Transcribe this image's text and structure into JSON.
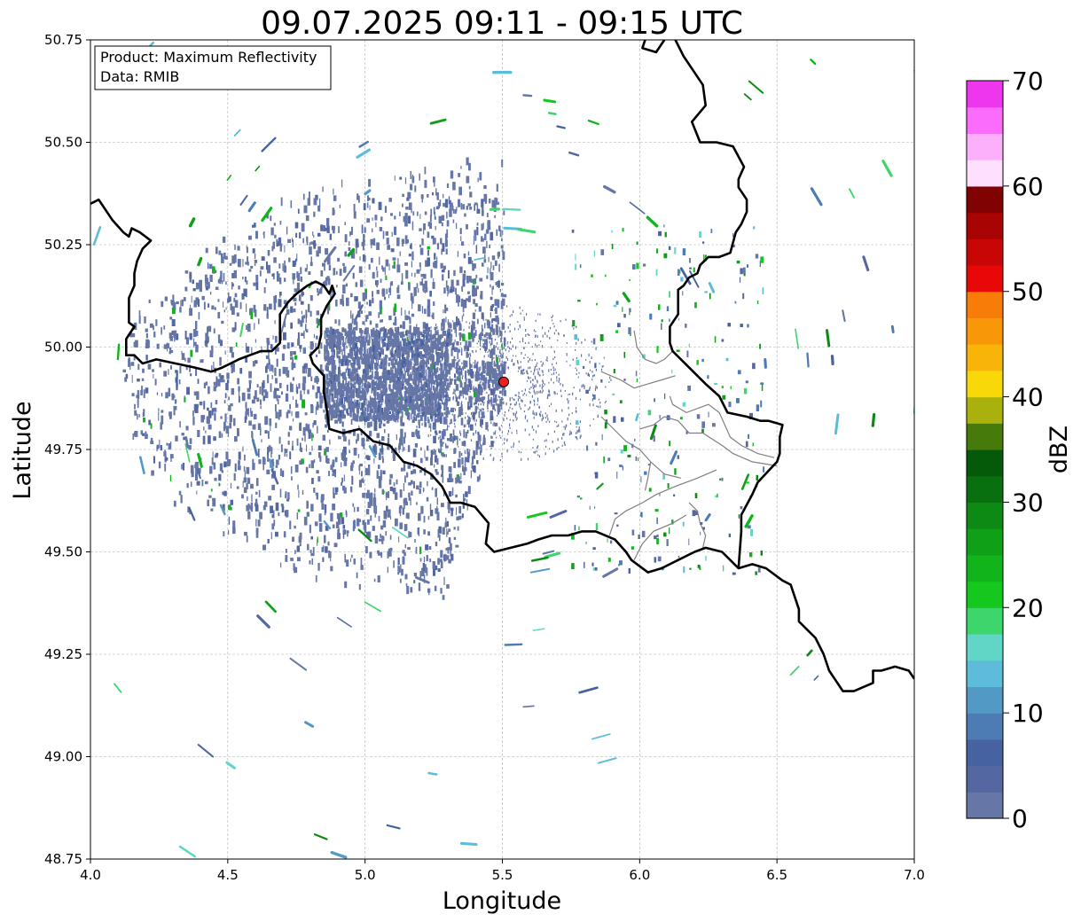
{
  "title": "09.07.2025 09:11 - 09:15 UTC",
  "info_box": {
    "line1": "Product: Maximum Reflectivity",
    "line2": "Data: RMIB"
  },
  "axes": {
    "xlabel": "Longitude",
    "ylabel": "Latitude",
    "xlim": [
      4.0,
      7.0
    ],
    "ylim": [
      48.75,
      50.75
    ],
    "xticks": [
      {
        "v": 4.0,
        "label": "4.0"
      },
      {
        "v": 4.5,
        "label": "4.5"
      },
      {
        "v": 5.0,
        "label": "5.0"
      },
      {
        "v": 5.5,
        "label": "5.5"
      },
      {
        "v": 6.0,
        "label": "6.0"
      },
      {
        "v": 6.5,
        "label": "6.5"
      },
      {
        "v": 7.0,
        "label": "7.0"
      }
    ],
    "yticks": [
      {
        "v": 48.75,
        "label": "48.75"
      },
      {
        "v": 49.0,
        "label": "49.00"
      },
      {
        "v": 49.25,
        "label": "49.25"
      },
      {
        "v": 49.5,
        "label": "49.50"
      },
      {
        "v": 49.75,
        "label": "49.75"
      },
      {
        "v": 50.0,
        "label": "50.00"
      },
      {
        "v": 50.25,
        "label": "50.25"
      },
      {
        "v": 50.5,
        "label": "50.50"
      },
      {
        "v": 50.75,
        "label": "50.75"
      }
    ],
    "grid": true
  },
  "radar_site": {
    "lon": 5.505,
    "lat": 49.915,
    "color": "#e8201f"
  },
  "colorbar": {
    "label": "dBZ",
    "min": 0,
    "max": 70,
    "ticks": [
      {
        "v": 0,
        "label": "0"
      },
      {
        "v": 10,
        "label": "10"
      },
      {
        "v": 20,
        "label": "20"
      },
      {
        "v": 30,
        "label": "30"
      },
      {
        "v": 40,
        "label": "40"
      },
      {
        "v": 50,
        "label": "50"
      },
      {
        "v": 60,
        "label": "60"
      },
      {
        "v": 70,
        "label": "70"
      }
    ],
    "colors": [
      "#6676a6",
      "#5567a1",
      "#4762a0",
      "#4d7cb5",
      "#529ac5",
      "#5cbcd9",
      "#61d6c6",
      "#3cd66c",
      "#14c81e",
      "#12b41c",
      "#10a018",
      "#0c8a14",
      "#08700e",
      "#055a0a",
      "#467a0a",
      "#aab00c",
      "#f8d808",
      "#f8b408",
      "#f89808",
      "#f87c08",
      "#e80808",
      "#c80606",
      "#a80404",
      "#800202",
      "#fee0fe",
      "#fcb0fc",
      "#fc6cfc",
      "#ee36ee"
    ]
  },
  "borders": {
    "country": [
      [
        [
          4.0,
          50.35
        ],
        [
          4.03,
          50.36
        ],
        [
          4.08,
          50.31
        ],
        [
          4.12,
          50.28
        ],
        [
          4.14,
          50.27
        ],
        [
          4.15,
          50.29
        ],
        [
          4.18,
          50.28
        ],
        [
          4.22,
          50.26
        ],
        [
          4.19,
          50.24
        ],
        [
          4.17,
          50.21
        ],
        [
          4.16,
          50.18
        ],
        [
          4.16,
          50.15
        ],
        [
          4.14,
          50.12
        ],
        [
          4.14,
          50.06
        ],
        [
          4.16,
          50.05
        ],
        [
          4.13,
          50.02
        ],
        [
          4.13,
          49.98
        ],
        [
          4.16,
          49.98
        ],
        [
          4.19,
          49.96
        ],
        [
          4.24,
          49.97
        ],
        [
          4.31,
          49.96
        ],
        [
          4.38,
          49.95
        ],
        [
          4.44,
          49.94
        ],
        [
          4.48,
          49.95
        ],
        [
          4.54,
          49.97
        ],
        [
          4.58,
          49.98
        ],
        [
          4.62,
          49.99
        ],
        [
          4.66,
          49.99
        ],
        [
          4.69,
          50.01
        ],
        [
          4.69,
          50.05
        ],
        [
          4.69,
          50.08
        ],
        [
          4.72,
          50.11
        ],
        [
          4.75,
          50.13
        ],
        [
          4.79,
          50.15
        ],
        [
          4.82,
          50.16
        ],
        [
          4.85,
          50.15
        ],
        [
          4.87,
          50.13
        ],
        [
          4.88,
          50.15
        ],
        [
          4.89,
          50.13
        ],
        [
          4.86,
          50.1
        ],
        [
          4.84,
          50.07
        ],
        [
          4.84,
          50.03
        ],
        [
          4.83,
          50.0
        ],
        [
          4.8,
          49.98
        ],
        [
          4.81,
          49.96
        ],
        [
          4.85,
          49.93
        ],
        [
          4.85,
          49.89
        ],
        [
          4.86,
          49.85
        ],
        [
          4.87,
          49.8
        ],
        [
          4.92,
          49.79
        ],
        [
          4.98,
          49.8
        ],
        [
          5.03,
          49.77
        ],
        [
          5.09,
          49.76
        ],
        [
          5.14,
          49.72
        ],
        [
          5.19,
          49.71
        ],
        [
          5.24,
          49.69
        ],
        [
          5.28,
          49.66
        ],
        [
          5.31,
          49.62
        ],
        [
          5.35,
          49.62
        ],
        [
          5.4,
          49.61
        ],
        [
          5.45,
          49.57
        ],
        [
          5.44,
          49.52
        ],
        [
          5.47,
          49.5
        ],
        [
          5.53,
          49.51
        ],
        [
          5.59,
          49.52
        ],
        [
          5.63,
          49.53
        ],
        [
          5.68,
          49.54
        ],
        [
          5.74,
          49.54
        ],
        [
          5.79,
          49.55
        ],
        [
          5.84,
          49.55
        ],
        [
          5.91,
          49.53
        ],
        [
          5.95,
          49.5
        ],
        [
          5.97,
          49.48
        ],
        [
          6.03,
          49.45
        ],
        [
          6.08,
          49.46
        ],
        [
          6.14,
          49.48
        ],
        [
          6.2,
          49.5
        ],
        [
          6.24,
          49.51
        ],
        [
          6.3,
          49.5
        ],
        [
          6.36,
          49.46
        ],
        [
          6.41,
          49.47
        ],
        [
          6.46,
          49.46
        ],
        [
          6.52,
          49.43
        ],
        [
          6.55,
          49.42
        ],
        [
          6.58,
          49.36
        ],
        [
          6.58,
          49.33
        ],
        [
          6.61,
          49.31
        ],
        [
          6.64,
          49.29
        ],
        [
          6.67,
          49.25
        ],
        [
          6.69,
          49.21
        ],
        [
          6.71,
          49.19
        ],
        [
          6.74,
          49.16
        ],
        [
          6.78,
          49.16
        ],
        [
          6.85,
          49.18
        ],
        [
          6.85,
          49.21
        ],
        [
          6.88,
          49.21
        ],
        [
          6.93,
          49.22
        ],
        [
          6.98,
          49.21
        ],
        [
          7.0,
          49.19
        ]
      ],
      [
        [
          6.09,
          50.75
        ],
        [
          6.06,
          50.72
        ],
        [
          6.01,
          50.73
        ],
        [
          6.02,
          50.75
        ]
      ],
      [
        [
          6.13,
          50.75
        ],
        [
          6.16,
          50.71
        ],
        [
          6.19,
          50.68
        ],
        [
          6.23,
          50.64
        ],
        [
          6.24,
          50.59
        ],
        [
          6.19,
          50.55
        ],
        [
          6.22,
          50.5
        ],
        [
          6.28,
          50.5
        ],
        [
          6.34,
          50.49
        ],
        [
          6.38,
          50.44
        ],
        [
          6.36,
          50.41
        ],
        [
          6.36,
          50.39
        ],
        [
          6.39,
          50.36
        ],
        [
          6.39,
          50.33
        ],
        [
          6.37,
          50.3
        ],
        [
          6.35,
          50.28
        ],
        [
          6.33,
          50.23
        ],
        [
          6.29,
          50.22
        ],
        [
          6.25,
          50.22
        ],
        [
          6.22,
          50.2
        ],
        [
          6.21,
          50.18
        ],
        [
          6.18,
          50.17
        ],
        [
          6.16,
          50.15
        ],
        [
          6.14,
          50.14
        ],
        [
          6.14,
          50.12
        ],
        [
          6.14,
          50.08
        ],
        [
          6.11,
          50.05
        ],
        [
          6.11,
          50.01
        ],
        [
          6.12,
          49.99
        ],
        [
          6.18,
          49.95
        ],
        [
          6.24,
          49.91
        ],
        [
          6.29,
          49.88
        ],
        [
          6.32,
          49.84
        ],
        [
          6.39,
          49.83
        ],
        [
          6.44,
          49.82
        ],
        [
          6.47,
          49.82
        ],
        [
          6.52,
          49.81
        ],
        [
          6.51,
          49.78
        ],
        [
          6.51,
          49.74
        ],
        [
          6.5,
          49.72
        ],
        [
          6.43,
          49.67
        ],
        [
          6.41,
          49.64
        ],
        [
          6.37,
          49.59
        ],
        [
          6.37,
          49.55
        ],
        [
          6.36,
          49.46
        ]
      ]
    ],
    "internal": [
      [
        [
          6.02,
          49.65
        ],
        [
          6.03,
          49.68
        ],
        [
          6.04,
          49.72
        ],
        [
          6.0,
          49.75
        ],
        [
          5.95,
          49.77
        ],
        [
          5.92,
          49.79
        ],
        [
          5.86,
          49.83
        ]
      ],
      [
        [
          6.11,
          49.88
        ],
        [
          6.12,
          49.86
        ],
        [
          6.17,
          49.84
        ],
        [
          6.25,
          49.86
        ],
        [
          6.29,
          49.84
        ],
        [
          6.31,
          49.81
        ],
        [
          6.33,
          49.78
        ],
        [
          6.37,
          49.76
        ],
        [
          6.43,
          49.74
        ],
        [
          6.49,
          49.73
        ]
      ],
      [
        [
          5.89,
          49.54
        ],
        [
          5.91,
          49.58
        ],
        [
          5.95,
          49.6
        ],
        [
          6.01,
          49.62
        ],
        [
          6.06,
          49.64
        ],
        [
          6.13,
          49.66
        ],
        [
          6.21,
          49.68
        ],
        [
          6.28,
          49.7
        ]
      ],
      [
        [
          5.86,
          49.94
        ],
        [
          5.93,
          49.92
        ],
        [
          5.98,
          49.9
        ],
        [
          6.03,
          49.91
        ],
        [
          6.08,
          49.92
        ],
        [
          6.13,
          49.93
        ]
      ],
      [
        [
          6.0,
          49.8
        ],
        [
          6.05,
          49.81
        ],
        [
          6.09,
          49.83
        ],
        [
          6.14,
          49.82
        ],
        [
          6.18,
          49.79
        ],
        [
          6.23,
          49.79
        ],
        [
          6.3,
          49.76
        ],
        [
          6.34,
          49.74
        ],
        [
          6.41,
          49.72
        ],
        [
          6.5,
          49.71
        ]
      ],
      [
        [
          5.98,
          50.04
        ],
        [
          5.99,
          50.0
        ],
        [
          6.02,
          49.97
        ],
        [
          6.06,
          49.96
        ],
        [
          6.09,
          49.97
        ],
        [
          6.12,
          49.99
        ]
      ],
      [
        [
          6.18,
          49.62
        ],
        [
          6.21,
          49.6
        ],
        [
          6.22,
          49.57
        ],
        [
          6.24,
          49.54
        ],
        [
          6.23,
          49.51
        ]
      ],
      [
        [
          5.98,
          49.48
        ],
        [
          6.01,
          49.52
        ],
        [
          6.05,
          49.55
        ],
        [
          6.12,
          49.57
        ],
        [
          6.17,
          49.59
        ]
      ],
      [
        [
          6.04,
          49.72
        ],
        [
          6.09,
          49.69
        ],
        [
          6.15,
          49.68
        ]
      ]
    ]
  }
}
